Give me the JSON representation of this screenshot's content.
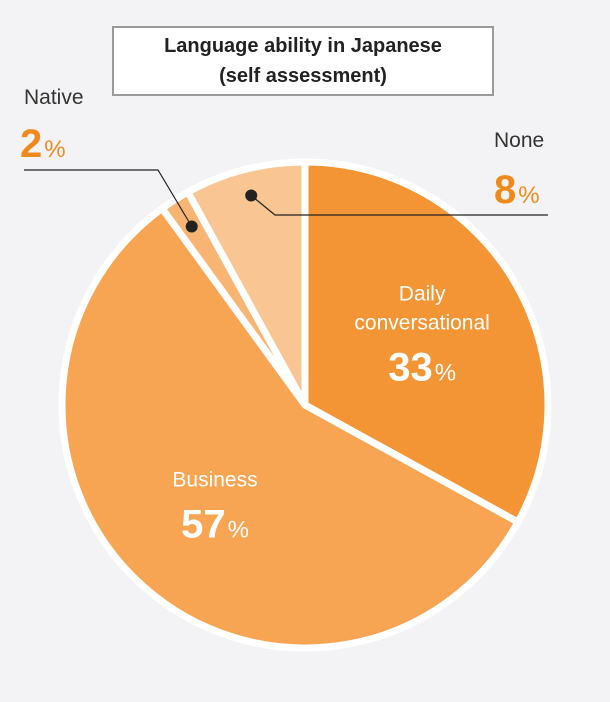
{
  "title": {
    "line1": "Language ability in Japanese",
    "line2": "(self assessment)"
  },
  "chart_data": {
    "type": "pie",
    "title": "Language ability in Japanese (self assessment)",
    "slices": [
      {
        "label": "Daily conversational",
        "label_lines": [
          "Daily",
          "conversational"
        ],
        "value": 33,
        "display": "33",
        "color": "#f39534",
        "label_color": "#ffffff",
        "label_placement": "inside"
      },
      {
        "label": "Business",
        "label_lines": [
          "Business"
        ],
        "value": 57,
        "display": "57",
        "color": "#f7a552",
        "label_color": "#ffffff",
        "label_placement": "inside"
      },
      {
        "label": "Native",
        "label_lines": [
          "Native"
        ],
        "value": 2,
        "display": "2",
        "color": "#f8b472",
        "label_color": "#ee8a1c",
        "label_placement": "outside-left"
      },
      {
        "label": "None",
        "label_lines": [
          "None"
        ],
        "value": 8,
        "display": "8",
        "color": "#f9c592",
        "label_color": "#ee8a1c",
        "label_placement": "outside-right"
      }
    ],
    "unit": "%",
    "start": "12 o'clock",
    "direction": "clockwise",
    "separator_color": "#ffffff"
  }
}
